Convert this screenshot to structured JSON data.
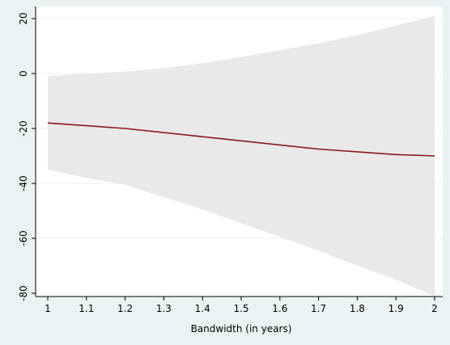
{
  "chart_data": {
    "type": "line",
    "title": "",
    "xlabel": "Bandwidth (in years)",
    "ylabel": "",
    "xlim": [
      1,
      2
    ],
    "ylim": [
      -80,
      20
    ],
    "x_ticks": [
      "1",
      "1.1",
      "1.2",
      "1.3",
      "1.4",
      "1.5",
      "1.6",
      "1.7",
      "1.8",
      "1.9",
      "2"
    ],
    "y_ticks": [
      "-80",
      "-60",
      "-40",
      "-20",
      "0",
      "20"
    ],
    "grid": true,
    "legend": "none",
    "colors": {
      "background": "#eaf2f3",
      "plot_area": "#ffffff",
      "band": "#e9e9e9",
      "line": "#8b1a1a",
      "grid": "#eaf2f3",
      "axis": "#000000"
    },
    "x": [
      1,
      1.1,
      1.2,
      1.3,
      1.4,
      1.5,
      1.6,
      1.7,
      1.8,
      1.9,
      2
    ],
    "series": [
      {
        "values": [
          -18,
          -19,
          -20,
          -21.5,
          -23,
          -24.5,
          -26,
          -27.5,
          -28.5,
          -29.5,
          -30
        ]
      }
    ],
    "ci_upper": [
      -1,
      0,
      0.7,
      2,
      3.8,
      6,
      8.5,
      11,
      14,
      17.5,
      21
    ],
    "ci_lower": [
      -35,
      -38,
      -40.5,
      -45,
      -49.5,
      -54.5,
      -59.5,
      -64.5,
      -70,
      -75,
      -81
    ]
  }
}
